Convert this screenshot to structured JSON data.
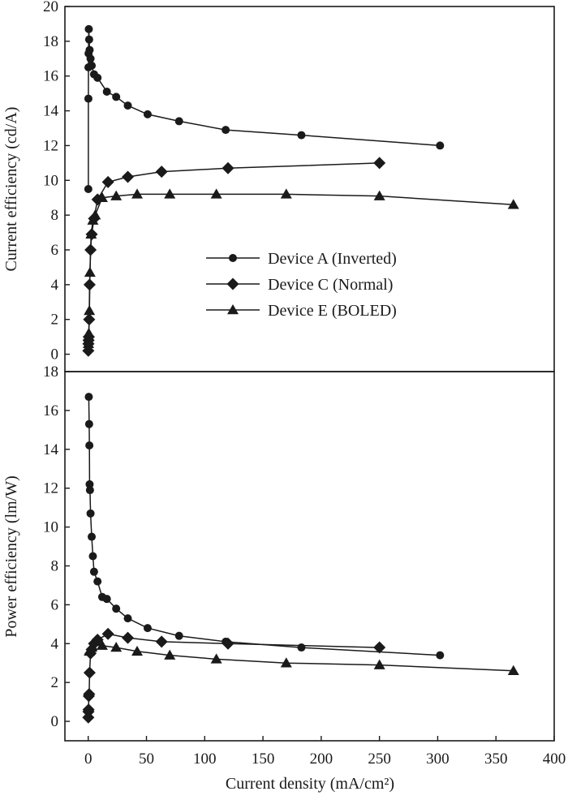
{
  "chart_data": [
    {
      "type": "line",
      "panel": "top",
      "ylabel": "Current efficiency (cd/A)",
      "xlim": [
        -20,
        400
      ],
      "ylim": [
        -1,
        20
      ],
      "yticks": [
        0,
        2,
        4,
        6,
        8,
        10,
        12,
        14,
        16,
        18,
        20
      ],
      "legend_position": "center",
      "series": [
        {
          "name": "Device A (Inverted)",
          "marker": "circle",
          "x": [
            0.1,
            0.15,
            0.2,
            0.3,
            0.5,
            0.8,
            1.2,
            2,
            3,
            5,
            8,
            16,
            24,
            34,
            51,
            78,
            118,
            183,
            302
          ],
          "y": [
            9.5,
            14.7,
            16.5,
            17.3,
            18.7,
            18.1,
            17.5,
            17.0,
            16.6,
            16.1,
            15.9,
            15.1,
            14.8,
            14.3,
            13.8,
            13.4,
            12.9,
            12.6,
            12.0
          ]
        },
        {
          "name": "Device C (Normal)",
          "marker": "diamond",
          "x": [
            0.1,
            0.2,
            0.3,
            0.5,
            0.8,
            1.2,
            2,
            3,
            5,
            8,
            17,
            34,
            63,
            120,
            250
          ],
          "y": [
            0.2,
            0.6,
            0.8,
            1.0,
            2.0,
            4.0,
            6.0,
            6.9,
            7.8,
            8.9,
            9.9,
            10.2,
            10.5,
            10.7,
            11.0
          ]
        },
        {
          "name": "Device E (BOLED)",
          "marker": "triangle",
          "x": [
            0.2,
            0.5,
            1,
            1.5,
            2.5,
            4,
            6,
            12,
            24,
            42,
            70,
            110,
            170,
            250,
            365
          ],
          "y": [
            0.6,
            1.2,
            2.5,
            4.7,
            6.9,
            7.7,
            8.0,
            9.0,
            9.1,
            9.2,
            9.2,
            9.2,
            9.2,
            9.1,
            8.6
          ]
        }
      ]
    },
    {
      "type": "line",
      "panel": "bottom",
      "xlabel": "Current density (mA/cm²)",
      "ylabel": "Power efficiency (lm/W)",
      "xlim": [
        -20,
        400
      ],
      "xticks": [
        0,
        50,
        100,
        150,
        200,
        250,
        300,
        350,
        400
      ],
      "ylim": [
        -1,
        18
      ],
      "yticks": [
        0,
        2,
        4,
        6,
        8,
        10,
        12,
        14,
        16,
        18
      ],
      "series": [
        {
          "name": "Device A (Inverted)",
          "marker": "circle",
          "x": [
            0.5,
            0.8,
            1,
            1.2,
            1.5,
            2,
            3,
            4,
            5,
            8,
            12,
            16,
            24,
            34,
            51,
            78,
            118,
            183,
            302
          ],
          "y": [
            16.7,
            15.3,
            14.2,
            12.2,
            11.9,
            10.7,
            9.5,
            8.5,
            7.7,
            7.2,
            6.4,
            6.3,
            5.8,
            5.3,
            4.8,
            4.4,
            4.1,
            3.8,
            3.4
          ]
        },
        {
          "name": "Device C (Normal)",
          "marker": "diamond",
          "x": [
            0.1,
            0.2,
            0.3,
            0.5,
            0.8,
            1.2,
            2,
            3,
            5,
            8,
            17,
            34,
            63,
            120,
            250
          ],
          "y": [
            0.2,
            0.5,
            0.6,
            1.3,
            1.4,
            2.5,
            3.5,
            3.7,
            4.0,
            4.2,
            4.5,
            4.3,
            4.1,
            4.0,
            3.8
          ]
        },
        {
          "name": "Device E (BOLED)",
          "marker": "triangle",
          "x": [
            1,
            3,
            6,
            12,
            24,
            42,
            70,
            110,
            170,
            250,
            365
          ],
          "y": [
            3.6,
            3.8,
            4.1,
            3.9,
            3.8,
            3.6,
            3.4,
            3.2,
            3.0,
            2.9,
            2.6
          ]
        }
      ]
    }
  ]
}
